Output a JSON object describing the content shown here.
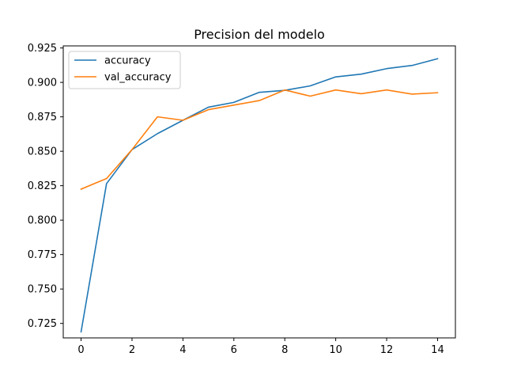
{
  "chart_data": {
    "type": "line",
    "title": "Precision del modelo",
    "xlabel": "",
    "ylabel": "",
    "x": [
      0,
      1,
      2,
      3,
      4,
      5,
      6,
      7,
      8,
      9,
      10,
      11,
      12,
      13,
      14
    ],
    "xlim": [
      -0.7,
      14.7
    ],
    "ylim": [
      0.7145,
      0.9265
    ],
    "x_ticks": [
      0,
      2,
      4,
      6,
      8,
      10,
      12,
      14
    ],
    "y_ticks": [
      0.725,
      0.75,
      0.775,
      0.8,
      0.825,
      0.85,
      0.875,
      0.9,
      0.925
    ],
    "x_tick_labels": [
      "0",
      "2",
      "4",
      "6",
      "8",
      "10",
      "12",
      "14"
    ],
    "y_tick_labels": [
      "0.725",
      "0.750",
      "0.775",
      "0.800",
      "0.825",
      "0.850",
      "0.875",
      "0.900",
      "0.925"
    ],
    "grid": false,
    "legend": "top-left",
    "series": [
      {
        "name": "accuracy",
        "color": "#1f77b4",
        "values": [
          0.7189,
          0.8265,
          0.8512,
          0.8628,
          0.8725,
          0.882,
          0.8855,
          0.8928,
          0.8942,
          0.8975,
          0.904,
          0.906,
          0.91,
          0.9123,
          0.9172
        ]
      },
      {
        "name": "val_accuracy",
        "color": "#ff7f0e",
        "values": [
          0.8225,
          0.8302,
          0.8512,
          0.875,
          0.8725,
          0.8802,
          0.8835,
          0.8868,
          0.8945,
          0.89,
          0.8945,
          0.8918,
          0.8945,
          0.8915,
          0.8925
        ]
      }
    ]
  }
}
